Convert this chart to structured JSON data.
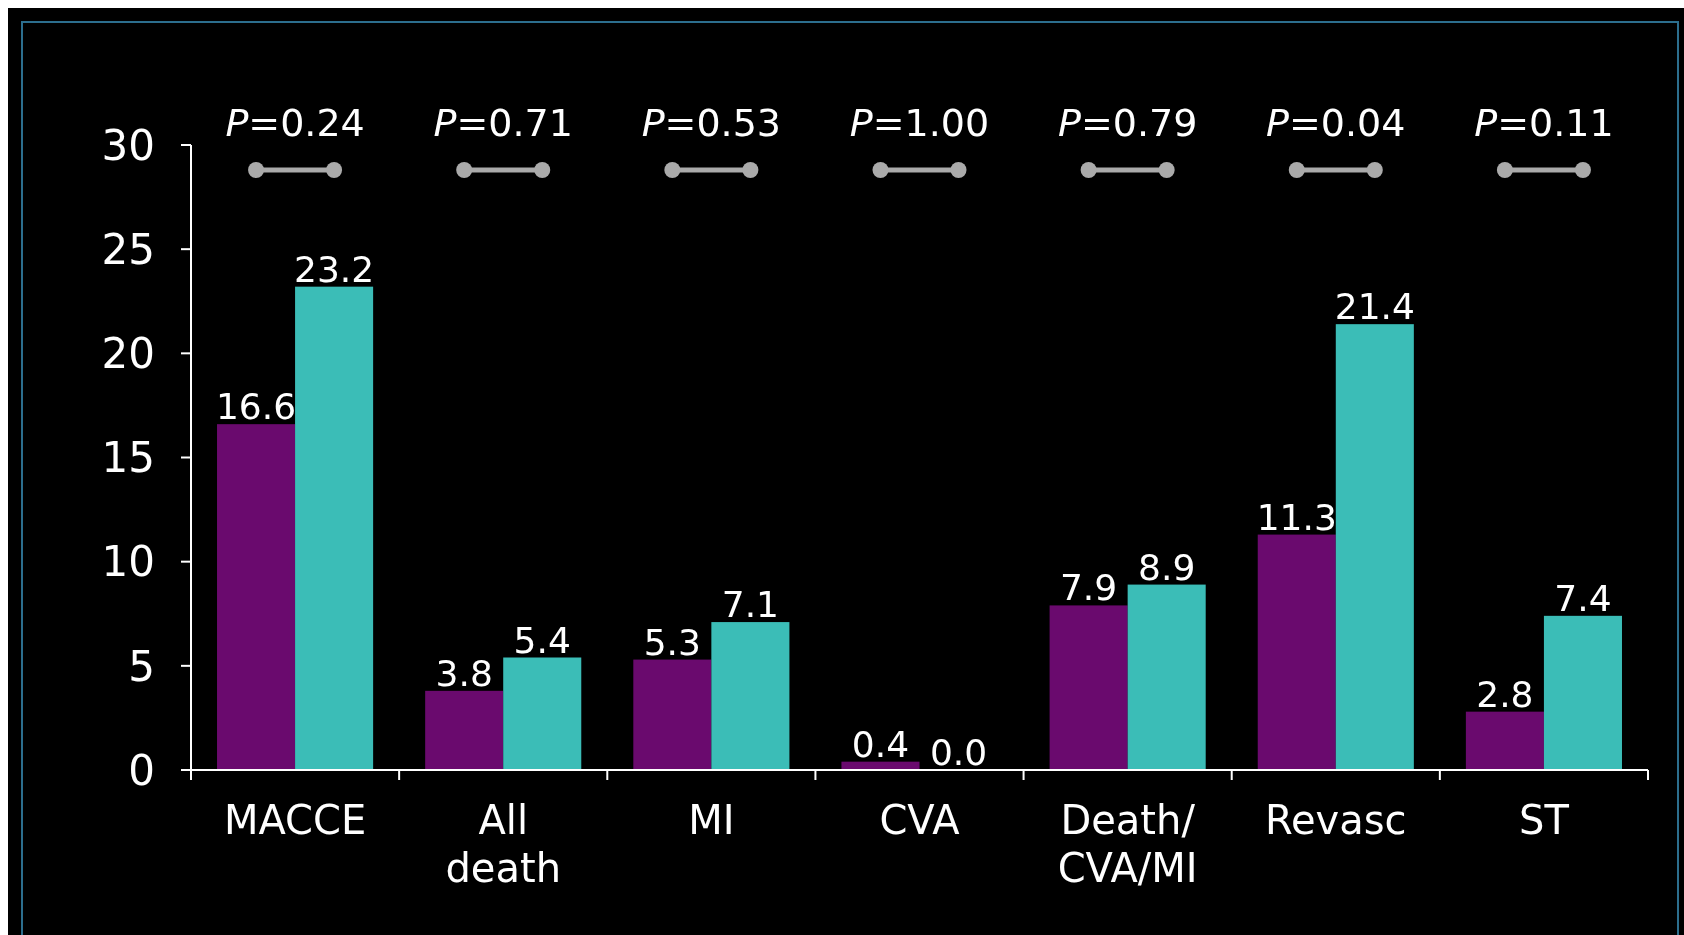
{
  "chart_data": {
    "type": "bar",
    "categories": [
      "MACCE",
      "All\ndeath",
      "MI",
      "CVA",
      "Death/\nCVA/MI",
      "Revasc",
      "ST"
    ],
    "series": [
      {
        "color": "#6a0a6e",
        "values": [
          16.6,
          3.8,
          5.3,
          0.4,
          7.9,
          11.3,
          2.8
        ],
        "value_labels": [
          "16.6",
          "3.8",
          "5.3",
          "0.4",
          "7.9",
          "11.3",
          "2.8"
        ]
      },
      {
        "color": "#3bbdb7",
        "values": [
          23.2,
          5.4,
          7.1,
          0.0,
          8.9,
          21.4,
          7.4
        ],
        "value_labels": [
          "23.2",
          "5.4",
          "7.1",
          "0.0",
          "8.9",
          "21.4",
          "7.4"
        ]
      }
    ],
    "ylim": [
      0,
      30
    ],
    "yticks": [
      0,
      5,
      10,
      15,
      20,
      25,
      30
    ],
    "grid": false,
    "legend": false,
    "annotations": [
      "P=0.24",
      "P=0.71",
      "P=0.53",
      "P=1.00",
      "P=0.79",
      "P=0.04",
      "P=0.11"
    ]
  }
}
